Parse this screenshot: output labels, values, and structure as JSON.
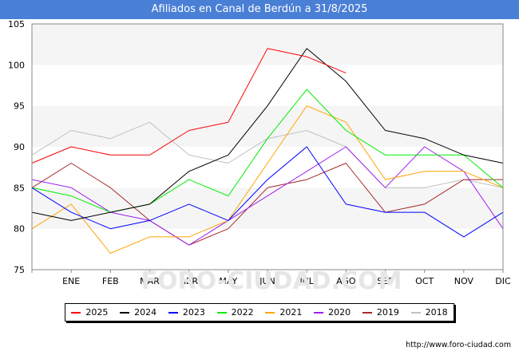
{
  "header": {
    "title": "Afiliados en Canal de Berdún a 31/8/2025"
  },
  "footer": {
    "url": "http://www.foro-ciudad.com",
    "watermark": "FORO-CIUDAD.COM"
  },
  "chart_data": {
    "type": "line",
    "title": "Afiliados en Canal de Berdún a 31/8/2025",
    "xlabel": "",
    "ylabel": "",
    "categories": [
      "",
      "ENE",
      "FEB",
      "MAR",
      "ABR",
      "MAY",
      "JUN",
      "JUL",
      "AGO",
      "SEP",
      "OCT",
      "NOV",
      "DIC"
    ],
    "ylim": [
      75,
      105
    ],
    "yticks": [
      75,
      80,
      85,
      90,
      95,
      100,
      105
    ],
    "grid": "horizontal bands",
    "legend_position": "bottom",
    "series": [
      {
        "name": "2025",
        "color": "#ff0000",
        "values": [
          88,
          90,
          89,
          89,
          92,
          93,
          102,
          101,
          99,
          null,
          null,
          null,
          null
        ]
      },
      {
        "name": "2024",
        "color": "#000000",
        "values": [
          82,
          81,
          82,
          83,
          87,
          89,
          95,
          102,
          98,
          92,
          91,
          89,
          88
        ]
      },
      {
        "name": "2023",
        "color": "#0000ff",
        "values": [
          85,
          82,
          80,
          81,
          83,
          81,
          86,
          90,
          83,
          82,
          82,
          79,
          82
        ]
      },
      {
        "name": "2022",
        "color": "#00ee00",
        "values": [
          85,
          84,
          82,
          83,
          86,
          84,
          91,
          97,
          92,
          89,
          89,
          89,
          85
        ]
      },
      {
        "name": "2021",
        "color": "#ffa500",
        "values": [
          80,
          83,
          77,
          79,
          79,
          81,
          88,
          95,
          93,
          86,
          87,
          87,
          85
        ]
      },
      {
        "name": "2020",
        "color": "#a020f0",
        "values": [
          86,
          85,
          82,
          81,
          78,
          81,
          84,
          87,
          90,
          85,
          90,
          87,
          80
        ]
      },
      {
        "name": "2019",
        "color": "#a52a2a",
        "values": [
          85,
          88,
          85,
          81,
          78,
          80,
          85,
          86,
          88,
          82,
          83,
          86,
          86
        ]
      },
      {
        "name": "2018",
        "color": "#c0c0c0",
        "values": [
          89,
          92,
          91,
          93,
          89,
          88,
          91,
          92,
          90,
          85,
          85,
          86,
          85
        ]
      }
    ]
  }
}
